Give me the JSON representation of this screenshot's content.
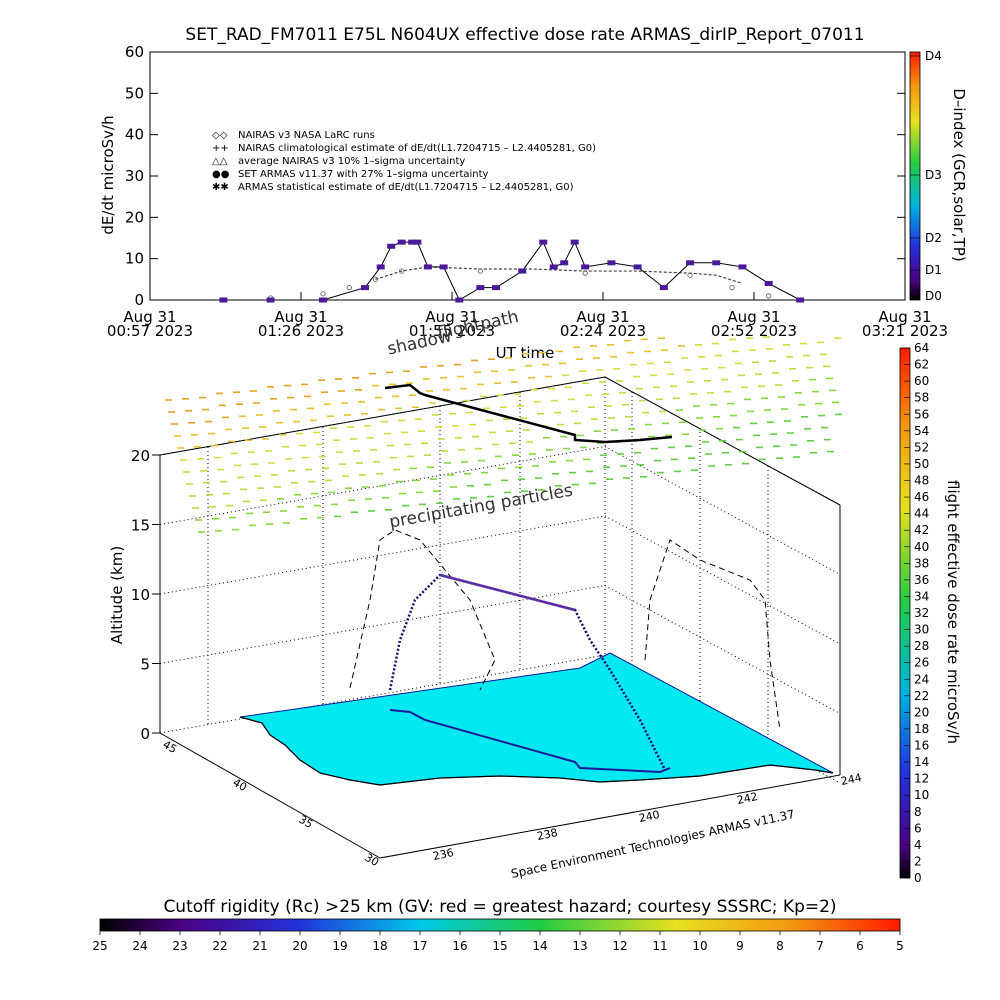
{
  "top_chart": {
    "title": "SET_RAD_FM7011   E75L N604UX effective dose rate ARMAS_dirIP_Report_07011",
    "ylabel": "dE/dt microSv/h",
    "xlabel": "UT time",
    "yticks": [
      "0",
      "10",
      "20",
      "30",
      "40",
      "50",
      "60"
    ],
    "xticks": [
      {
        "top": "Aug 31",
        "bottom": "00:57 2023"
      },
      {
        "top": "Aug 31",
        "bottom": "01:26 2023"
      },
      {
        "top": "Aug 31",
        "bottom": "01:55 2023"
      },
      {
        "top": "Aug 31",
        "bottom": "02:24 2023"
      },
      {
        "top": "Aug 31",
        "bottom": "02:52 2023"
      },
      {
        "top": "Aug 31",
        "bottom": "03:21 2023"
      }
    ],
    "legend": [
      {
        "symbol": "◇◇",
        "text": "NAIRAS v3 NASA LaRC runs"
      },
      {
        "symbol": "++",
        "text": "NAIRAS climatological estimate of dE/dt(L1.7204715 – L2.4405281, G0)"
      },
      {
        "symbol": "△△",
        "text": "average NAIRAS v3 10% 1–sigma uncertainty"
      },
      {
        "symbol": "●●",
        "text": "SET ARMAS v11.37 with 27% 1–sigma uncertainty"
      },
      {
        "symbol": "✱✱",
        "text": "ARMAS statistical estimate of dE/dt(L1.7204715 – L2.4405281, G0)"
      }
    ],
    "dindex": {
      "label": "D–index (GCR,solar,TP)",
      "ticks": [
        "D4",
        "D3",
        "D2",
        "D1",
        "D0"
      ]
    }
  },
  "chart_data": [
    {
      "type": "scatter",
      "title": "SET_RAD_FM7011   E75L N604UX effective dose rate ARMAS_dirIP_Report_07011",
      "xlabel": "UT time",
      "ylabel": "dE/dt microSv/h",
      "ylim": [
        0,
        60
      ],
      "x_range": [
        "00:57",
        "03:21"
      ],
      "series": [
        {
          "name": "SET ARMAS v11.37 with 27% 1–sigma uncertainty",
          "x": [
            "01:11",
            "01:20",
            "01:30",
            "01:38",
            "01:41",
            "01:43",
            "01:45",
            "01:47",
            "01:48",
            "01:50",
            "01:53",
            "01:56",
            "02:00",
            "02:03",
            "02:08",
            "02:12",
            "02:14",
            "02:16",
            "02:18",
            "02:20",
            "02:25",
            "02:30",
            "02:35",
            "02:40",
            "02:45",
            "02:50",
            "02:55",
            "03:01"
          ],
          "y": [
            0,
            0,
            0,
            3,
            8,
            13,
            14,
            14,
            14,
            8,
            8,
            0,
            3,
            3,
            7,
            14,
            8,
            9,
            14,
            8,
            9,
            8,
            3,
            9,
            9,
            8,
            4,
            0
          ]
        },
        {
          "name": "ARMAS statistical estimate of dE/dt(L1.7204715 – L2.4405281, G0)",
          "x": [
            "01:40",
            "01:45",
            "01:50",
            "02:00",
            "02:10",
            "02:20",
            "02:30",
            "02:40",
            "02:45",
            "02:50"
          ],
          "y": [
            5,
            7,
            8,
            7.5,
            7.5,
            7,
            7,
            6.5,
            6,
            4
          ]
        },
        {
          "name": "NAIRAS v3 NASA LaRC runs",
          "x": [
            "01:11",
            "01:20",
            "01:30",
            "01:35",
            "01:40",
            "01:45",
            "02:00",
            "02:20",
            "02:40",
            "02:48",
            "02:55",
            "03:01"
          ],
          "y": [
            0,
            0.5,
            1.5,
            3,
            5,
            7,
            7,
            6.5,
            6,
            3,
            1,
            0
          ]
        }
      ]
    },
    {
      "type": "scatter",
      "title": "",
      "zlabel": "Altitude (km)",
      "z_ticks": [
        0,
        5,
        10,
        15,
        20
      ],
      "lat_ticks": [
        30,
        35,
        40,
        45
      ],
      "lon_ticks": [
        236,
        238,
        240,
        242,
        244
      ],
      "series": [
        {
          "name": "flightpath",
          "type": "line"
        },
        {
          "name": "shadow",
          "type": "line"
        },
        {
          "name": "precipitating particles",
          "type": "scatter"
        }
      ]
    }
  ],
  "bottom_3d": {
    "label_flightpath": "flightpath",
    "label_shadow": "shadow",
    "label_particles": "precipitating particles",
    "zlabel": "Altitude (km)",
    "zticks": [
      "0",
      "5",
      "10",
      "15",
      "20"
    ],
    "lat_ticks": [
      "30",
      "35",
      "40",
      "45"
    ],
    "lon_ticks": [
      "236",
      "238",
      "240",
      "242",
      "244"
    ],
    "credit": "Space Environment Technologies ARMAS v11.37",
    "colorbar_label": "flight effective dose rate microSv/h",
    "colorbar_ticks": [
      "0",
      "2",
      "4",
      "6",
      "8",
      "10",
      "12",
      "14",
      "16",
      "18",
      "20",
      "22",
      "24",
      "26",
      "28",
      "30",
      "32",
      "34",
      "36",
      "38",
      "40",
      "42",
      "44",
      "46",
      "48",
      "50",
      "52",
      "54",
      "56",
      "58",
      "60",
      "62",
      "64"
    ]
  },
  "cutoff_bar": {
    "label": "Cutoff rigidity (Rc) >25 km (GV: red = greatest hazard; courtesy SSSRC; Kp=2)",
    "ticks": [
      "25",
      "24",
      "23",
      "22",
      "21",
      "20",
      "19",
      "18",
      "17",
      "16",
      "15",
      "14",
      "13",
      "12",
      "11",
      "10",
      "9",
      "8",
      "7",
      "6",
      "5"
    ]
  }
}
